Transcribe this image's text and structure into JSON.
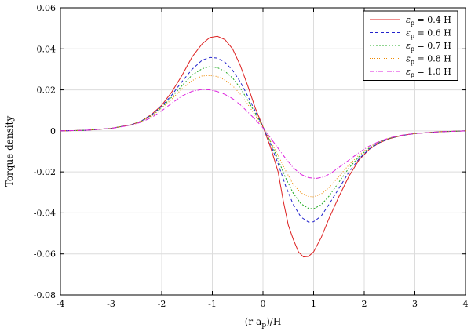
{
  "chart_data": {
    "type": "line",
    "title": "",
    "xlabel": "(r-a",
    "xlabel_sub": "p",
    "xlabel_suffix": ")/H",
    "ylabel": "Torque density",
    "xlim": [
      -4,
      4
    ],
    "ylim": [
      -0.08,
      0.06
    ],
    "xticks": [
      -4,
      -3,
      -2,
      -1,
      0,
      1,
      2,
      3,
      4
    ],
    "yticks": [
      -0.08,
      -0.06,
      -0.04,
      -0.02,
      0,
      0.02,
      0.04,
      0.06
    ],
    "xtick_labels": [
      "-4",
      "-3",
      "-2",
      "-1",
      "0",
      "1",
      "2",
      "3",
      "4"
    ],
    "ytick_labels": [
      "-0.08",
      "-0.06",
      "-0.04",
      "-0.02",
      "0",
      "0.02",
      "0.04",
      "0.06"
    ],
    "grid": true,
    "legend_position": "top-right",
    "series": [
      {
        "name": "ε",
        "name_sub": "p",
        "name_suffix": " = 0.4 H",
        "color": "#dd2222",
        "dash": "",
        "points": [
          [
            -4,
            0
          ],
          [
            -3.5,
            0.0003
          ],
          [
            -3,
            0.0012
          ],
          [
            -2.6,
            0.003
          ],
          [
            -2.4,
            0.0048
          ],
          [
            -2.2,
            0.008
          ],
          [
            -2.0,
            0.0125
          ],
          [
            -1.8,
            0.019
          ],
          [
            -1.6,
            0.027
          ],
          [
            -1.4,
            0.036
          ],
          [
            -1.2,
            0.0425
          ],
          [
            -1.05,
            0.0455
          ],
          [
            -0.9,
            0.0461
          ],
          [
            -0.75,
            0.0445
          ],
          [
            -0.6,
            0.04
          ],
          [
            -0.45,
            0.032
          ],
          [
            -0.3,
            0.022
          ],
          [
            -0.15,
            0.011
          ],
          [
            0,
            0.002
          ],
          [
            0.15,
            -0.008
          ],
          [
            0.3,
            -0.02
          ],
          [
            0.4,
            -0.034
          ],
          [
            0.5,
            -0.046
          ],
          [
            0.6,
            -0.053
          ],
          [
            0.7,
            -0.059
          ],
          [
            0.8,
            -0.0615
          ],
          [
            0.9,
            -0.0612
          ],
          [
            1.0,
            -0.059
          ],
          [
            1.15,
            -0.052
          ],
          [
            1.3,
            -0.043
          ],
          [
            1.5,
            -0.032
          ],
          [
            1.7,
            -0.022
          ],
          [
            1.9,
            -0.014
          ],
          [
            2.1,
            -0.009
          ],
          [
            2.3,
            -0.0058
          ],
          [
            2.5,
            -0.0038
          ],
          [
            2.75,
            -0.0022
          ],
          [
            3,
            -0.0013
          ],
          [
            3.5,
            -0.0004
          ],
          [
            4,
            0
          ]
        ]
      },
      {
        "name": "ε",
        "name_sub": "p",
        "name_suffix": " = 0.6 H",
        "color": "#2222cc",
        "dash": "4,3",
        "points": [
          [
            -4,
            0
          ],
          [
            -3.5,
            0.0003
          ],
          [
            -3,
            0.0012
          ],
          [
            -2.6,
            0.003
          ],
          [
            -2.4,
            0.0048
          ],
          [
            -2.2,
            0.0078
          ],
          [
            -2.0,
            0.012
          ],
          [
            -1.8,
            0.0175
          ],
          [
            -1.6,
            0.024
          ],
          [
            -1.4,
            0.03
          ],
          [
            -1.2,
            0.0345
          ],
          [
            -1.05,
            0.0358
          ],
          [
            -0.9,
            0.0355
          ],
          [
            -0.75,
            0.0335
          ],
          [
            -0.6,
            0.0295
          ],
          [
            -0.45,
            0.024
          ],
          [
            -0.3,
            0.017
          ],
          [
            -0.15,
            0.0095
          ],
          [
            0,
            0.002
          ],
          [
            0.15,
            -0.0065
          ],
          [
            0.3,
            -0.016
          ],
          [
            0.45,
            -0.027
          ],
          [
            0.6,
            -0.036
          ],
          [
            0.75,
            -0.042
          ],
          [
            0.9,
            -0.0445
          ],
          [
            1.0,
            -0.0443
          ],
          [
            1.15,
            -0.0415
          ],
          [
            1.3,
            -0.036
          ],
          [
            1.5,
            -0.028
          ],
          [
            1.7,
            -0.02
          ],
          [
            1.9,
            -0.0135
          ],
          [
            2.1,
            -0.0088
          ],
          [
            2.3,
            -0.0057
          ],
          [
            2.5,
            -0.0037
          ],
          [
            2.75,
            -0.0022
          ],
          [
            3,
            -0.0013
          ],
          [
            3.5,
            -0.0004
          ],
          [
            4,
            0
          ]
        ]
      },
      {
        "name": "ε",
        "name_sub": "p",
        "name_suffix": " = 0.7 H",
        "color": "#22aa22",
        "dash": "2,2",
        "points": [
          [
            -4,
            0
          ],
          [
            -3.5,
            0.0003
          ],
          [
            -3,
            0.0012
          ],
          [
            -2.6,
            0.003
          ],
          [
            -2.4,
            0.0047
          ],
          [
            -2.2,
            0.0075
          ],
          [
            -2.0,
            0.0115
          ],
          [
            -1.8,
            0.0165
          ],
          [
            -1.6,
            0.022
          ],
          [
            -1.4,
            0.0272
          ],
          [
            -1.2,
            0.0303
          ],
          [
            -1.05,
            0.0313
          ],
          [
            -0.9,
            0.0308
          ],
          [
            -0.75,
            0.029
          ],
          [
            -0.6,
            0.0258
          ],
          [
            -0.45,
            0.021
          ],
          [
            -0.3,
            0.015
          ],
          [
            -0.15,
            0.0085
          ],
          [
            0,
            0.002
          ],
          [
            0.15,
            -0.0055
          ],
          [
            0.3,
            -0.014
          ],
          [
            0.45,
            -0.023
          ],
          [
            0.6,
            -0.0305
          ],
          [
            0.75,
            -0.0355
          ],
          [
            0.9,
            -0.0378
          ],
          [
            1.0,
            -0.038
          ],
          [
            1.15,
            -0.036
          ],
          [
            1.3,
            -0.032
          ],
          [
            1.5,
            -0.025
          ],
          [
            1.7,
            -0.018
          ],
          [
            1.9,
            -0.0125
          ],
          [
            2.1,
            -0.0083
          ],
          [
            2.3,
            -0.0055
          ],
          [
            2.5,
            -0.0036
          ],
          [
            2.75,
            -0.0021
          ],
          [
            3,
            -0.0013
          ],
          [
            3.5,
            -0.0004
          ],
          [
            4,
            0
          ]
        ]
      },
      {
        "name": "ε",
        "name_sub": "p",
        "name_suffix": " = 0.8 H",
        "color": "#ee8800",
        "dash": "1,2",
        "points": [
          [
            -4,
            0
          ],
          [
            -3.5,
            0.0003
          ],
          [
            -3,
            0.0012
          ],
          [
            -2.6,
            0.003
          ],
          [
            -2.4,
            0.0046
          ],
          [
            -2.2,
            0.0072
          ],
          [
            -2.0,
            0.011
          ],
          [
            -1.8,
            0.0155
          ],
          [
            -1.6,
            0.0205
          ],
          [
            -1.4,
            0.0245
          ],
          [
            -1.2,
            0.0268
          ],
          [
            -1.05,
            0.027
          ],
          [
            -0.9,
            0.0265
          ],
          [
            -0.75,
            0.0248
          ],
          [
            -0.6,
            0.022
          ],
          [
            -0.45,
            0.018
          ],
          [
            -0.3,
            0.013
          ],
          [
            -0.15,
            0.0075
          ],
          [
            0,
            0.002
          ],
          [
            0.15,
            -0.005
          ],
          [
            0.3,
            -0.012
          ],
          [
            0.45,
            -0.0195
          ],
          [
            0.6,
            -0.0262
          ],
          [
            0.75,
            -0.0302
          ],
          [
            0.9,
            -0.032
          ],
          [
            1.0,
            -0.0322
          ],
          [
            1.15,
            -0.0308
          ],
          [
            1.3,
            -0.0278
          ],
          [
            1.5,
            -0.0222
          ],
          [
            1.7,
            -0.0165
          ],
          [
            1.9,
            -0.0117
          ],
          [
            2.1,
            -0.0079
          ],
          [
            2.3,
            -0.0053
          ],
          [
            2.5,
            -0.0035
          ],
          [
            2.75,
            -0.0021
          ],
          [
            3,
            -0.0013
          ],
          [
            3.5,
            -0.0004
          ],
          [
            4,
            0
          ]
        ]
      },
      {
        "name": "ε",
        "name_sub": "p",
        "name_suffix": " = 1.0 H",
        "color": "#dd22dd",
        "dash": "6,2,1,2",
        "points": [
          [
            -4,
            0
          ],
          [
            -3.5,
            0.0003
          ],
          [
            -3,
            0.0012
          ],
          [
            -2.6,
            0.0028
          ],
          [
            -2.4,
            0.0043
          ],
          [
            -2.2,
            0.0065
          ],
          [
            -2.0,
            0.0098
          ],
          [
            -1.8,
            0.0135
          ],
          [
            -1.6,
            0.017
          ],
          [
            -1.4,
            0.0193
          ],
          [
            -1.2,
            0.0202
          ],
          [
            -1.05,
            0.02
          ],
          [
            -0.9,
            0.0192
          ],
          [
            -0.75,
            0.0178
          ],
          [
            -0.6,
            0.0157
          ],
          [
            -0.45,
            0.0128
          ],
          [
            -0.3,
            0.0092
          ],
          [
            -0.15,
            0.0055
          ],
          [
            0,
            0.0015
          ],
          [
            0.15,
            -0.0035
          ],
          [
            0.3,
            -0.0085
          ],
          [
            0.45,
            -0.0135
          ],
          [
            0.6,
            -0.018
          ],
          [
            0.75,
            -0.0212
          ],
          [
            0.9,
            -0.0228
          ],
          [
            1.05,
            -0.0232
          ],
          [
            1.2,
            -0.0225
          ],
          [
            1.35,
            -0.0205
          ],
          [
            1.5,
            -0.0178
          ],
          [
            1.7,
            -0.0142
          ],
          [
            1.9,
            -0.0105
          ],
          [
            2.1,
            -0.0074
          ],
          [
            2.3,
            -0.0051
          ],
          [
            2.5,
            -0.0034
          ],
          [
            2.75,
            -0.0021
          ],
          [
            3,
            -0.0013
          ],
          [
            3.5,
            -0.0004
          ],
          [
            4,
            0
          ]
        ]
      }
    ]
  }
}
